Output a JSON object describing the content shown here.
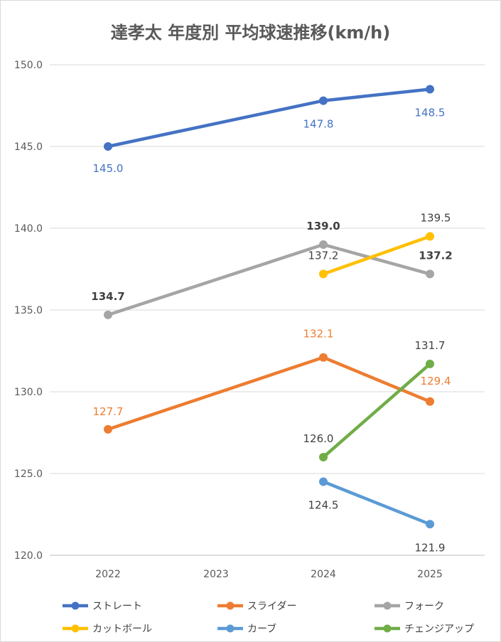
{
  "chart_data": {
    "type": "line",
    "title": "達孝太 年度別 平均球速推移(km/h)",
    "categories": [
      "2022",
      "2023",
      "2024",
      "2025"
    ],
    "y_ticks": [
      "120.0",
      "125.0",
      "130.0",
      "135.0",
      "140.0",
      "145.0",
      "150.0"
    ],
    "ylim": [
      120,
      150
    ],
    "grid": true,
    "legend_position": "bottom",
    "series": [
      {
        "name": "ストレート",
        "color": "#4472C4",
        "values": [
          145.0,
          null,
          147.8,
          148.5
        ],
        "labels": [
          "145.0",
          null,
          "147.8",
          "148.5"
        ],
        "label_bold": false
      },
      {
        "name": "スライダー",
        "color": "#ED7D31",
        "values": [
          127.7,
          null,
          132.1,
          129.4
        ],
        "labels": [
          "127.7",
          null,
          "132.1",
          "129.4"
        ],
        "label_bold": false
      },
      {
        "name": "フォーク",
        "color": "#A5A5A5",
        "values": [
          134.7,
          null,
          139.0,
          137.2
        ],
        "labels": [
          "134.7",
          null,
          "139.0",
          "137.2"
        ],
        "label_bold": true
      },
      {
        "name": "カットボール",
        "color": "#FFC000",
        "values": [
          null,
          null,
          137.2,
          139.5
        ],
        "labels": [
          null,
          null,
          "137.2",
          "139.5"
        ],
        "label_bold": false
      },
      {
        "name": "カーブ",
        "color": "#5B9BD5",
        "values": [
          null,
          null,
          124.5,
          121.9
        ],
        "labels": [
          null,
          null,
          "124.5",
          "121.9"
        ],
        "label_bold": false
      },
      {
        "name": "チェンジアップ",
        "color": "#70AD47",
        "values": [
          null,
          null,
          126.0,
          131.7
        ],
        "labels": [
          null,
          null,
          "126.0",
          "131.7"
        ],
        "label_bold": false
      }
    ]
  }
}
